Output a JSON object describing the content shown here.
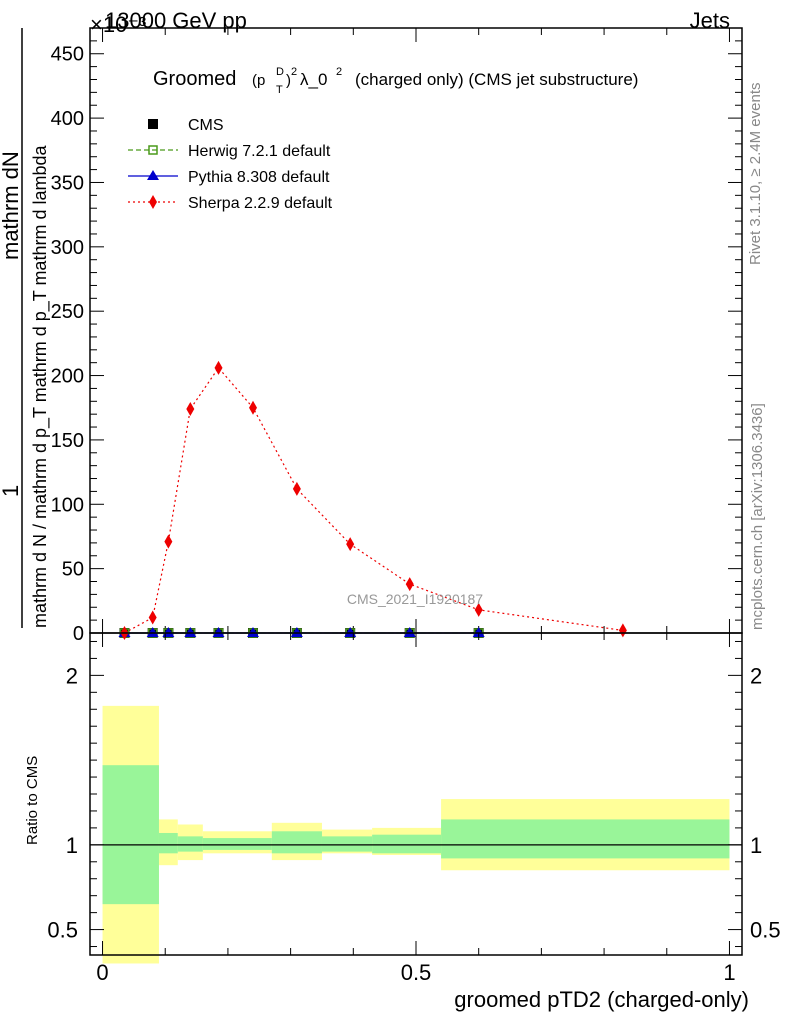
{
  "header": {
    "energy_label": "13000 GeV pp",
    "process_label": "Jets",
    "exponent_label": "×10⁻³"
  },
  "side_labels": {
    "rivet": "Rivet 3.1.10, ≥ 2.4M events",
    "mcplots": "mcplots.cern.ch [arXiv:1306.3436]"
  },
  "watermark": "CMS_2021_I1920187",
  "chart_data": [
    {
      "type": "scatter",
      "title": "Groomed (p_T^D)^2 λ_0^2  (charged only) (CMS jet substructure)",
      "title_parts": {
        "main": "Groomed",
        "sup": "D",
        "sub": "T",
        "rest": "λ_0",
        "tail": "(charged only) (CMS jet substructure)"
      },
      "ylabel_top": "mathrm dN",
      "ylabel_bottom": "mathrm d N / mathrm d p_T mathrm d p_T mathrm d lambda",
      "ylabel_numerator": "1",
      "ylim": [
        0,
        470
      ],
      "xlim": [
        -0.02,
        1.02
      ],
      "yticks": [
        0,
        50,
        100,
        150,
        200,
        250,
        300,
        350,
        400,
        450
      ],
      "legend_position": "top-left",
      "series": [
        {
          "name": "CMS",
          "color": "#000000",
          "marker": "square",
          "x": [
            0.035,
            0.08,
            0.105,
            0.14,
            0.185,
            0.24,
            0.31,
            0.395,
            0.49,
            0.6
          ],
          "y": [
            0,
            0,
            0,
            0,
            0,
            0,
            0,
            0,
            0,
            0
          ]
        },
        {
          "name": "Herwig 7.2.1 default",
          "color": "#4a9a1a",
          "marker": "open-square",
          "line": "dashed",
          "x": [
            0.035,
            0.08,
            0.105,
            0.14,
            0.185,
            0.24,
            0.31,
            0.395,
            0.49,
            0.6
          ],
          "y": [
            0,
            0,
            0,
            0,
            0,
            0,
            0,
            0,
            0,
            0
          ]
        },
        {
          "name": "Pythia 8.308 default",
          "color": "#0000cc",
          "marker": "triangle",
          "line": "solid",
          "x": [
            0.035,
            0.08,
            0.105,
            0.14,
            0.185,
            0.24,
            0.31,
            0.395,
            0.49,
            0.6
          ],
          "y": [
            0,
            0,
            0,
            0,
            0,
            0,
            0,
            0,
            0,
            0
          ]
        },
        {
          "name": "Sherpa 2.2.9 default",
          "color": "#ee0000",
          "marker": "diamond",
          "line": "dotted",
          "x": [
            0.035,
            0.08,
            0.105,
            0.14,
            0.185,
            0.24,
            0.31,
            0.395,
            0.49,
            0.6,
            0.83
          ],
          "y": [
            0,
            12,
            71,
            174,
            206,
            175,
            112,
            69,
            38,
            18,
            2
          ]
        }
      ]
    },
    {
      "type": "area",
      "ylabel": "Ratio to CMS",
      "xlabel": "groomed pTD2 (charged-only)",
      "ylim": [
        0.35,
        2.25
      ],
      "xlim": [
        -0.02,
        1.02
      ],
      "yticks": [
        0.5,
        1,
        2
      ],
      "ytick_labels": [
        "0.5",
        "1",
        "2"
      ],
      "xticks": [
        0,
        0.5,
        1
      ],
      "xtick_labels": [
        "0",
        "0.5",
        "1"
      ],
      "reference_line": 1,
      "bins": [
        {
          "lo": 0.0,
          "hi": 0.09,
          "inner": [
            0.65,
            1.47
          ],
          "outer": [
            0.3,
            1.82
          ]
        },
        {
          "lo": 0.09,
          "hi": 0.12,
          "inner": [
            0.95,
            1.07
          ],
          "outer": [
            0.88,
            1.15
          ]
        },
        {
          "lo": 0.12,
          "hi": 0.16,
          "inner": [
            0.96,
            1.05
          ],
          "outer": [
            0.91,
            1.12
          ]
        },
        {
          "lo": 0.16,
          "hi": 0.27,
          "inner": [
            0.97,
            1.04
          ],
          "outer": [
            0.95,
            1.08
          ]
        },
        {
          "lo": 0.27,
          "hi": 0.35,
          "inner": [
            0.95,
            1.08
          ],
          "outer": [
            0.91,
            1.13
          ]
        },
        {
          "lo": 0.35,
          "hi": 0.43,
          "inner": [
            0.96,
            1.05
          ],
          "outer": [
            0.95,
            1.09
          ]
        },
        {
          "lo": 0.43,
          "hi": 0.54,
          "inner": [
            0.95,
            1.06
          ],
          "outer": [
            0.94,
            1.1
          ]
        },
        {
          "lo": 0.54,
          "hi": 1.0,
          "inner": [
            0.92,
            1.15
          ],
          "outer": [
            0.85,
            1.27
          ]
        }
      ],
      "band_colors": {
        "inner": "#99f599",
        "outer": "#ffff99"
      }
    }
  ]
}
